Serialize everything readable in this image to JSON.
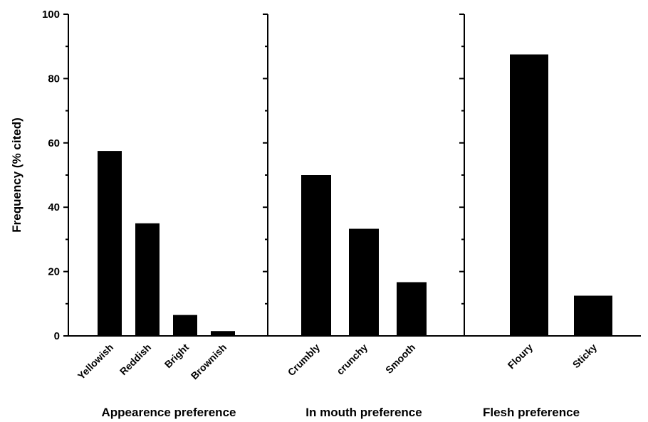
{
  "chart_data": {
    "type": "bar",
    "ylabel": "Frequency (% cited)",
    "ylim": [
      0,
      100
    ],
    "yticks": [
      0,
      20,
      40,
      60,
      80,
      100
    ],
    "grid": false,
    "bar_color": "#000000",
    "panels": [
      {
        "title": "Appearence preference",
        "categories": [
          "Yellowish",
          "Reddish",
          "Bright",
          "Brownish"
        ],
        "values": [
          57.5,
          35,
          6.5,
          1.5
        ]
      },
      {
        "title": "In mouth preference",
        "categories": [
          "Crumbly",
          "crunchy",
          "Smooth"
        ],
        "values": [
          50,
          33.3,
          16.7
        ]
      },
      {
        "title": "Flesh preference",
        "categories": [
          "Floury",
          "Sticky"
        ],
        "values": [
          87.5,
          12.5
        ]
      }
    ]
  }
}
